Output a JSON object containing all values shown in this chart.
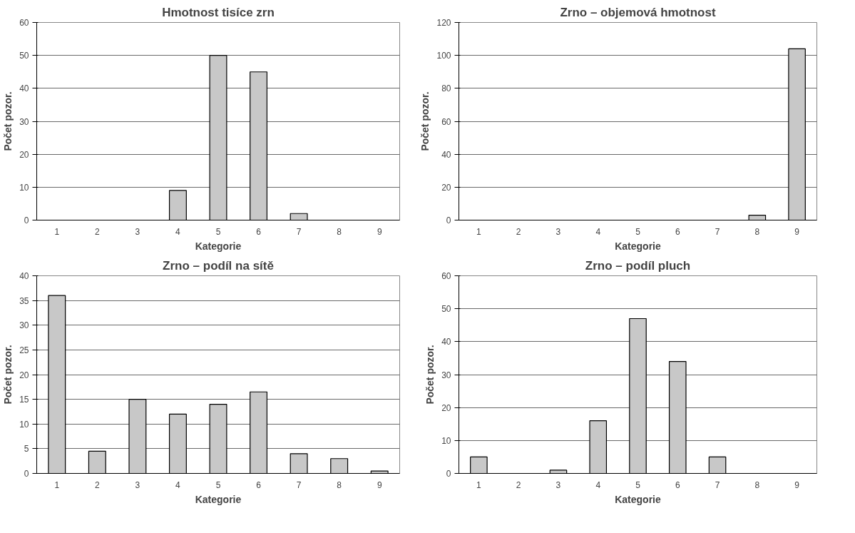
{
  "chart_data": [
    {
      "type": "bar",
      "title": "Hmotnost tisíce zrn",
      "xlabel": "Kategorie",
      "ylabel": "Počet pozor.",
      "categories": [
        "1",
        "2",
        "3",
        "4",
        "5",
        "6",
        "7",
        "8",
        "9"
      ],
      "values": [
        0,
        0,
        0,
        9,
        50,
        45,
        2,
        0,
        0
      ],
      "color": "#c8c8c8",
      "ylim": [
        0,
        60
      ],
      "yticks": [
        0,
        10,
        20,
        30,
        40,
        50,
        60
      ],
      "grid": "y"
    },
    {
      "type": "bar",
      "title": "Zrno – objemová hmotnost",
      "xlabel": "Kategorie",
      "ylabel": "Počet pozor.",
      "categories": [
        "1",
        "2",
        "3",
        "4",
        "5",
        "6",
        "7",
        "8",
        "9"
      ],
      "values": [
        0,
        0,
        0,
        0,
        0,
        0,
        0,
        3,
        104
      ],
      "color": "#c8c8c8",
      "ylim": [
        0,
        120
      ],
      "yticks": [
        0,
        20,
        40,
        60,
        80,
        100,
        120
      ],
      "grid": "y"
    },
    {
      "type": "bar",
      "title": "Zrno – podíl na sítě",
      "xlabel": "Kategorie",
      "ylabel": "Počet pozor.",
      "categories": [
        "1",
        "2",
        "3",
        "4",
        "5",
        "6",
        "7",
        "8",
        "9"
      ],
      "values": [
        36,
        4.5,
        15,
        12,
        14,
        16.5,
        4,
        3,
        0.5
      ],
      "color": "#c8c8c8",
      "ylim": [
        0,
        40
      ],
      "yticks": [
        0,
        5,
        10,
        15,
        20,
        25,
        30,
        35,
        40
      ],
      "grid": "y"
    },
    {
      "type": "bar",
      "title": "Zrno – podíl pluch",
      "xlabel": "Kategorie",
      "ylabel": "Počet pozor.",
      "categories": [
        "1",
        "2",
        "3",
        "4",
        "5",
        "6",
        "7",
        "8",
        "9"
      ],
      "values": [
        5,
        0,
        1,
        16,
        47,
        34,
        5,
        0,
        0
      ],
      "color": "#c8c8c8",
      "ylim": [
        0,
        60
      ],
      "yticks": [
        0,
        10,
        20,
        30,
        40,
        50,
        60
      ],
      "grid": "y"
    }
  ]
}
